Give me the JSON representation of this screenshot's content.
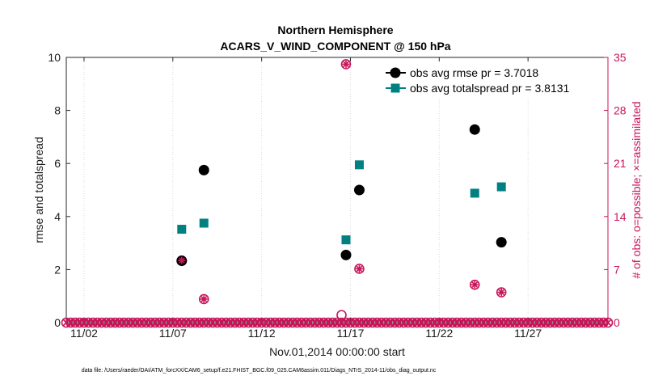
{
  "chart_data": {
    "type": "scatter",
    "title": "Northern Hemisphere",
    "subtitle": "ACARS_V_WIND_COMPONENT @ 150 hPa",
    "xlabel": "Nov.01,2014 00:00:00 start",
    "ylabel": "rmse and totalspread",
    "y2label": "# of obs: o=possible; ×=assimilated",
    "xlim": [
      0,
      30.5
    ],
    "ylim": [
      0,
      10
    ],
    "y2lim": [
      0,
      35
    ],
    "xticks": [
      {
        "x": 1,
        "label": "11/02"
      },
      {
        "x": 6,
        "label": "11/07"
      },
      {
        "x": 11,
        "label": "11/12"
      },
      {
        "x": 16,
        "label": "11/17"
      },
      {
        "x": 21,
        "label": "11/22"
      },
      {
        "x": 26,
        "label": "11/27"
      }
    ],
    "yticks": [
      0,
      2,
      4,
      6,
      8,
      10
    ],
    "y2ticks": [
      0,
      7,
      14,
      21,
      28,
      35
    ],
    "footnote": "data file: /Users/raeder/DAI/ATM_forcXX/CAM6_setup/f.e21.FHIST_BGC.f09_025.CAM6assim.011/Diags_NTrS_2014-11/obs_diag_output.nc",
    "legend": [
      {
        "label": "obs avg rmse pr = 3.7018",
        "color": "#000000",
        "marker": "circle"
      },
      {
        "label": "obs avg totalspread pr = 3.8131",
        "color": "#008080",
        "marker": "square"
      }
    ],
    "colors": {
      "rmse": "#000000",
      "spread": "#008080",
      "counts": "#c8155a"
    },
    "series": [
      {
        "name": "rmse",
        "points": [
          {
            "x": 6.5,
            "y": 2.33
          },
          {
            "x": 7.75,
            "y": 5.75
          },
          {
            "x": 15.75,
            "y": 2.55
          },
          {
            "x": 16.5,
            "y": 5.0
          },
          {
            "x": 23.0,
            "y": 7.28
          },
          {
            "x": 24.5,
            "y": 3.03
          }
        ]
      },
      {
        "name": "totalspread",
        "points": [
          {
            "x": 6.5,
            "y": 3.52
          },
          {
            "x": 7.75,
            "y": 3.75
          },
          {
            "x": 15.75,
            "y": 3.12
          },
          {
            "x": 16.5,
            "y": 5.95
          },
          {
            "x": 23.0,
            "y": 4.88
          },
          {
            "x": 24.5,
            "y": 5.12
          }
        ]
      },
      {
        "name": "obs possible",
        "axis": "right",
        "points": [
          {
            "x": 6.5,
            "y": 8.2
          },
          {
            "x": 7.75,
            "y": 3.1
          },
          {
            "x": 15.5,
            "y": 1.0
          },
          {
            "x": 15.75,
            "y": 34.1
          },
          {
            "x": 16.5,
            "y": 7.1
          },
          {
            "x": 23.0,
            "y": 5.0
          },
          {
            "x": 24.5,
            "y": 4.0
          }
        ]
      },
      {
        "name": "obs assimilated",
        "axis": "right",
        "points": [
          {
            "x": 6.5,
            "y": 8.2
          },
          {
            "x": 7.75,
            "y": 3.1
          },
          {
            "x": 15.75,
            "y": 34.1
          },
          {
            "x": 16.5,
            "y": 7.1
          },
          {
            "x": 23.0,
            "y": 5.0
          },
          {
            "x": 24.5,
            "y": 4.0
          }
        ]
      },
      {
        "name": "zero counts",
        "axis": "right",
        "x_start": 0,
        "x_end": 30.5,
        "step": 0.25,
        "y": 0
      }
    ]
  }
}
